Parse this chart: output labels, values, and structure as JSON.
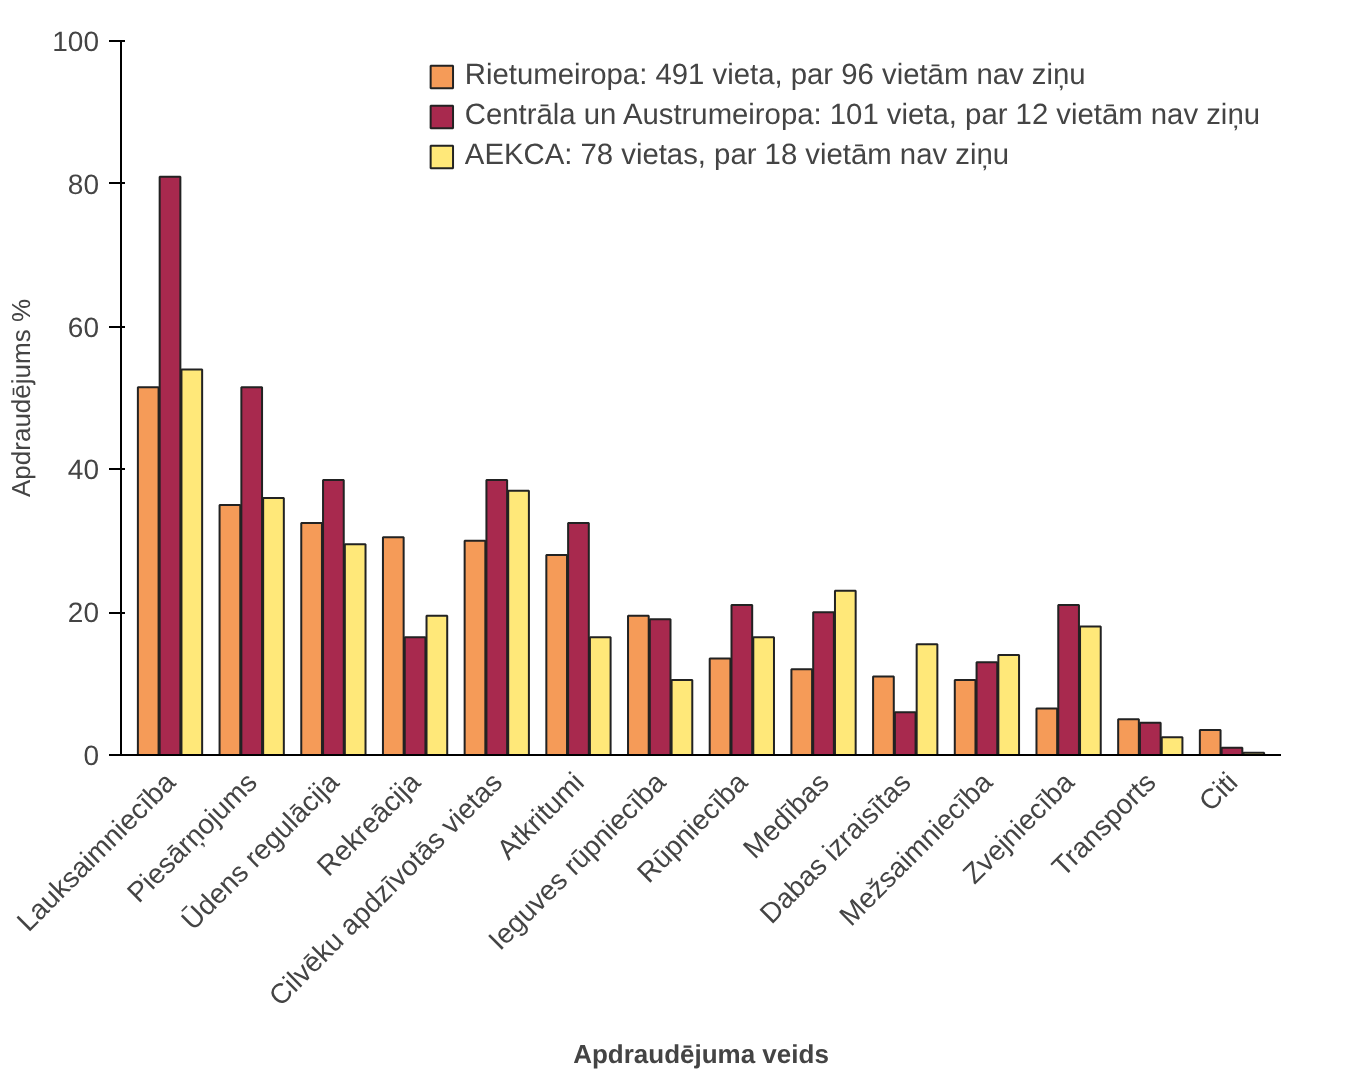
{
  "chart_data": {
    "type": "bar",
    "ylabel": "Apdraudējums %",
    "xlabel": "Apdraudējuma veids",
    "categories": [
      "Lauksaimniecība",
      "Piesārņojums",
      "Ūdens regulācija",
      "Rekreācija",
      "Cilvēku apdzīvotās vietas",
      "Atkritumi",
      "Ieguves rūpniecība",
      "Rūpniecība",
      "Medības",
      "Dabas izraisītas",
      "Mežsaimniecība",
      "Zvejniecība",
      "Transports",
      "Citi"
    ],
    "series": [
      {
        "name": "Rietumeiropa: 491 vieta, par 96 vietām nav ziņu",
        "color": "#f59b58",
        "values": [
          51.5,
          35,
          32.5,
          30.5,
          30,
          28,
          19.5,
          13.5,
          12,
          11,
          10.5,
          6.5,
          5,
          3.5
        ]
      },
      {
        "name": "Centrāla un Austrumeiropa: 101 vieta, par 12 vietām nav ziņu",
        "color": "#a8294e",
        "values": [
          81,
          51.5,
          38.5,
          16.5,
          38.5,
          32.5,
          19,
          21,
          20,
          6,
          13,
          21,
          4.5,
          1
        ]
      },
      {
        "name": "AEKCA: 78 vietas, par 18 vietām nav ziņu",
        "color": "#ffe879",
        "values": [
          54,
          36,
          29.5,
          19.5,
          37,
          16.5,
          10.5,
          16.5,
          23,
          15.5,
          14,
          18,
          2.5,
          0.3
        ]
      }
    ],
    "ylim": [
      0,
      100
    ],
    "yticks": [
      0,
      20,
      40,
      60,
      80,
      100
    ],
    "grid": false,
    "legend": "top right"
  }
}
